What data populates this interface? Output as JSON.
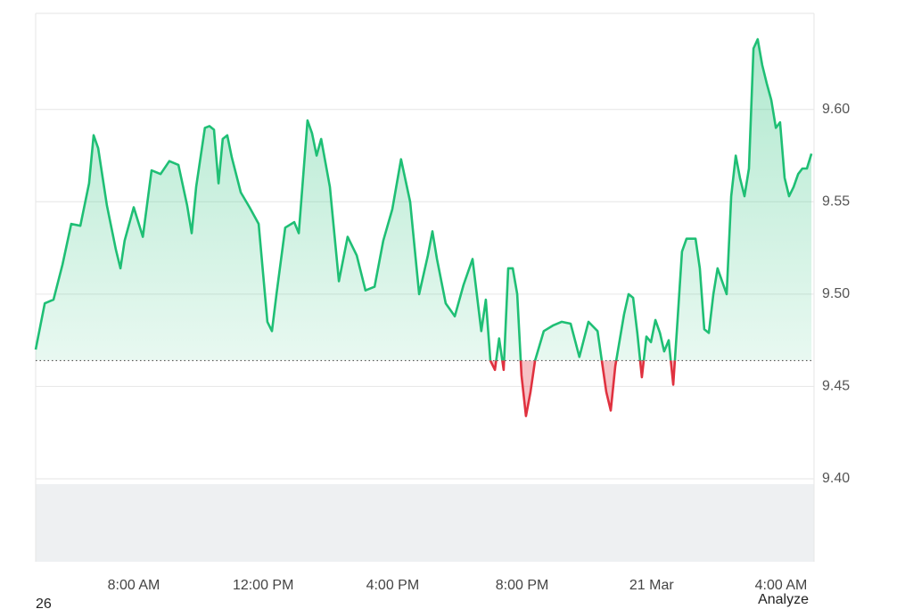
{
  "chart_data": {
    "type": "line",
    "x": [
      4.97,
      5.25,
      5.52,
      5.8,
      6.07,
      6.35,
      6.62,
      6.76,
      6.9,
      7.17,
      7.45,
      7.59,
      7.72,
      8.0,
      8.28,
      8.55,
      8.83,
      9.1,
      9.38,
      9.65,
      9.79,
      9.93,
      10.2,
      10.34,
      10.48,
      10.62,
      10.75,
      10.89,
      11.03,
      11.31,
      11.58,
      11.86,
      12.13,
      12.27,
      12.41,
      12.68,
      12.96,
      13.1,
      13.37,
      13.51,
      13.65,
      13.79,
      14.06,
      14.34,
      14.61,
      14.89,
      15.16,
      15.44,
      15.71,
      15.99,
      16.26,
      16.54,
      16.82,
      17.09,
      17.23,
      17.37,
      17.64,
      17.92,
      18.19,
      18.47,
      18.74,
      18.88,
      19.02,
      19.16,
      19.29,
      19.43,
      19.57,
      19.71,
      19.85,
      19.98,
      20.12,
      20.26,
      20.4,
      20.67,
      20.95,
      21.22,
      21.5,
      21.77,
      22.05,
      22.33,
      22.6,
      22.74,
      22.88,
      23.15,
      23.29,
      23.43,
      23.56,
      23.7,
      23.84,
      23.98,
      24.12,
      24.26,
      24.39,
      24.53,
      24.67,
      24.8,
      24.94,
      25.08,
      25.36,
      25.49,
      25.63,
      25.77,
      25.91,
      26.04,
      26.32,
      26.46,
      26.6,
      26.73,
      26.87,
      27.01,
      27.15,
      27.28,
      27.42,
      27.56,
      27.7,
      27.84,
      27.97,
      28.11,
      28.25,
      28.39,
      28.53,
      28.66,
      28.8,
      28.94
    ],
    "values": [
      9.47,
      9.495,
      9.497,
      9.516,
      9.538,
      9.537,
      9.56,
      9.586,
      9.579,
      9.548,
      9.524,
      9.514,
      9.529,
      9.547,
      9.531,
      9.567,
      9.565,
      9.572,
      9.57,
      9.548,
      9.533,
      9.558,
      9.59,
      9.591,
      9.589,
      9.56,
      9.584,
      9.586,
      9.574,
      9.555,
      9.547,
      9.538,
      9.485,
      9.48,
      9.5,
      9.536,
      9.539,
      9.533,
      9.594,
      9.587,
      9.575,
      9.584,
      9.558,
      9.507,
      9.531,
      9.521,
      9.502,
      9.504,
      9.529,
      9.546,
      9.573,
      9.55,
      9.5,
      9.521,
      9.534,
      9.519,
      9.495,
      9.488,
      9.505,
      9.519,
      9.48,
      9.497,
      9.464,
      9.459,
      9.476,
      9.459,
      9.514,
      9.514,
      9.5,
      9.456,
      9.434,
      9.447,
      9.464,
      9.48,
      9.483,
      9.485,
      9.484,
      9.466,
      9.485,
      9.48,
      9.447,
      9.437,
      9.461,
      9.489,
      9.5,
      9.498,
      9.479,
      9.455,
      9.477,
      9.474,
      9.486,
      9.479,
      9.469,
      9.475,
      9.451,
      9.485,
      9.523,
      9.53,
      9.53,
      9.514,
      9.481,
      9.479,
      9.5,
      9.514,
      9.5,
      9.553,
      9.575,
      9.563,
      9.553,
      9.568,
      9.633,
      9.638,
      9.624,
      9.614,
      9.605,
      9.59,
      9.593,
      9.563,
      9.553,
      9.558,
      9.565,
      9.568,
      9.568,
      9.576
    ],
    "baseline": 9.464,
    "color": "#1fbf75",
    "down_color": "#e0313f",
    "xlim": [
      4.97,
      29.02
    ],
    "xticks": [
      {
        "value": 8,
        "label": "8:00 AM"
      },
      {
        "value": 12,
        "label": "12:00 PM"
      },
      {
        "value": 16,
        "label": "4:00 PM"
      },
      {
        "value": 20,
        "label": "8:00 PM"
      },
      {
        "value": 24,
        "label": "21 Mar"
      },
      {
        "value": 28,
        "label": "4:00 AM"
      }
    ],
    "ylim": [
      9.4,
      9.652
    ],
    "yticks": [
      {
        "value": 9.4,
        "label": "9.40"
      },
      9.45,
      {
        "value": 9.5,
        "label": "9.50"
      },
      9.55,
      {
        "value": 9.6,
        "label": "9.60"
      }
    ],
    "grid": true,
    "footer_left": "26",
    "footer_right": "Analyze"
  }
}
